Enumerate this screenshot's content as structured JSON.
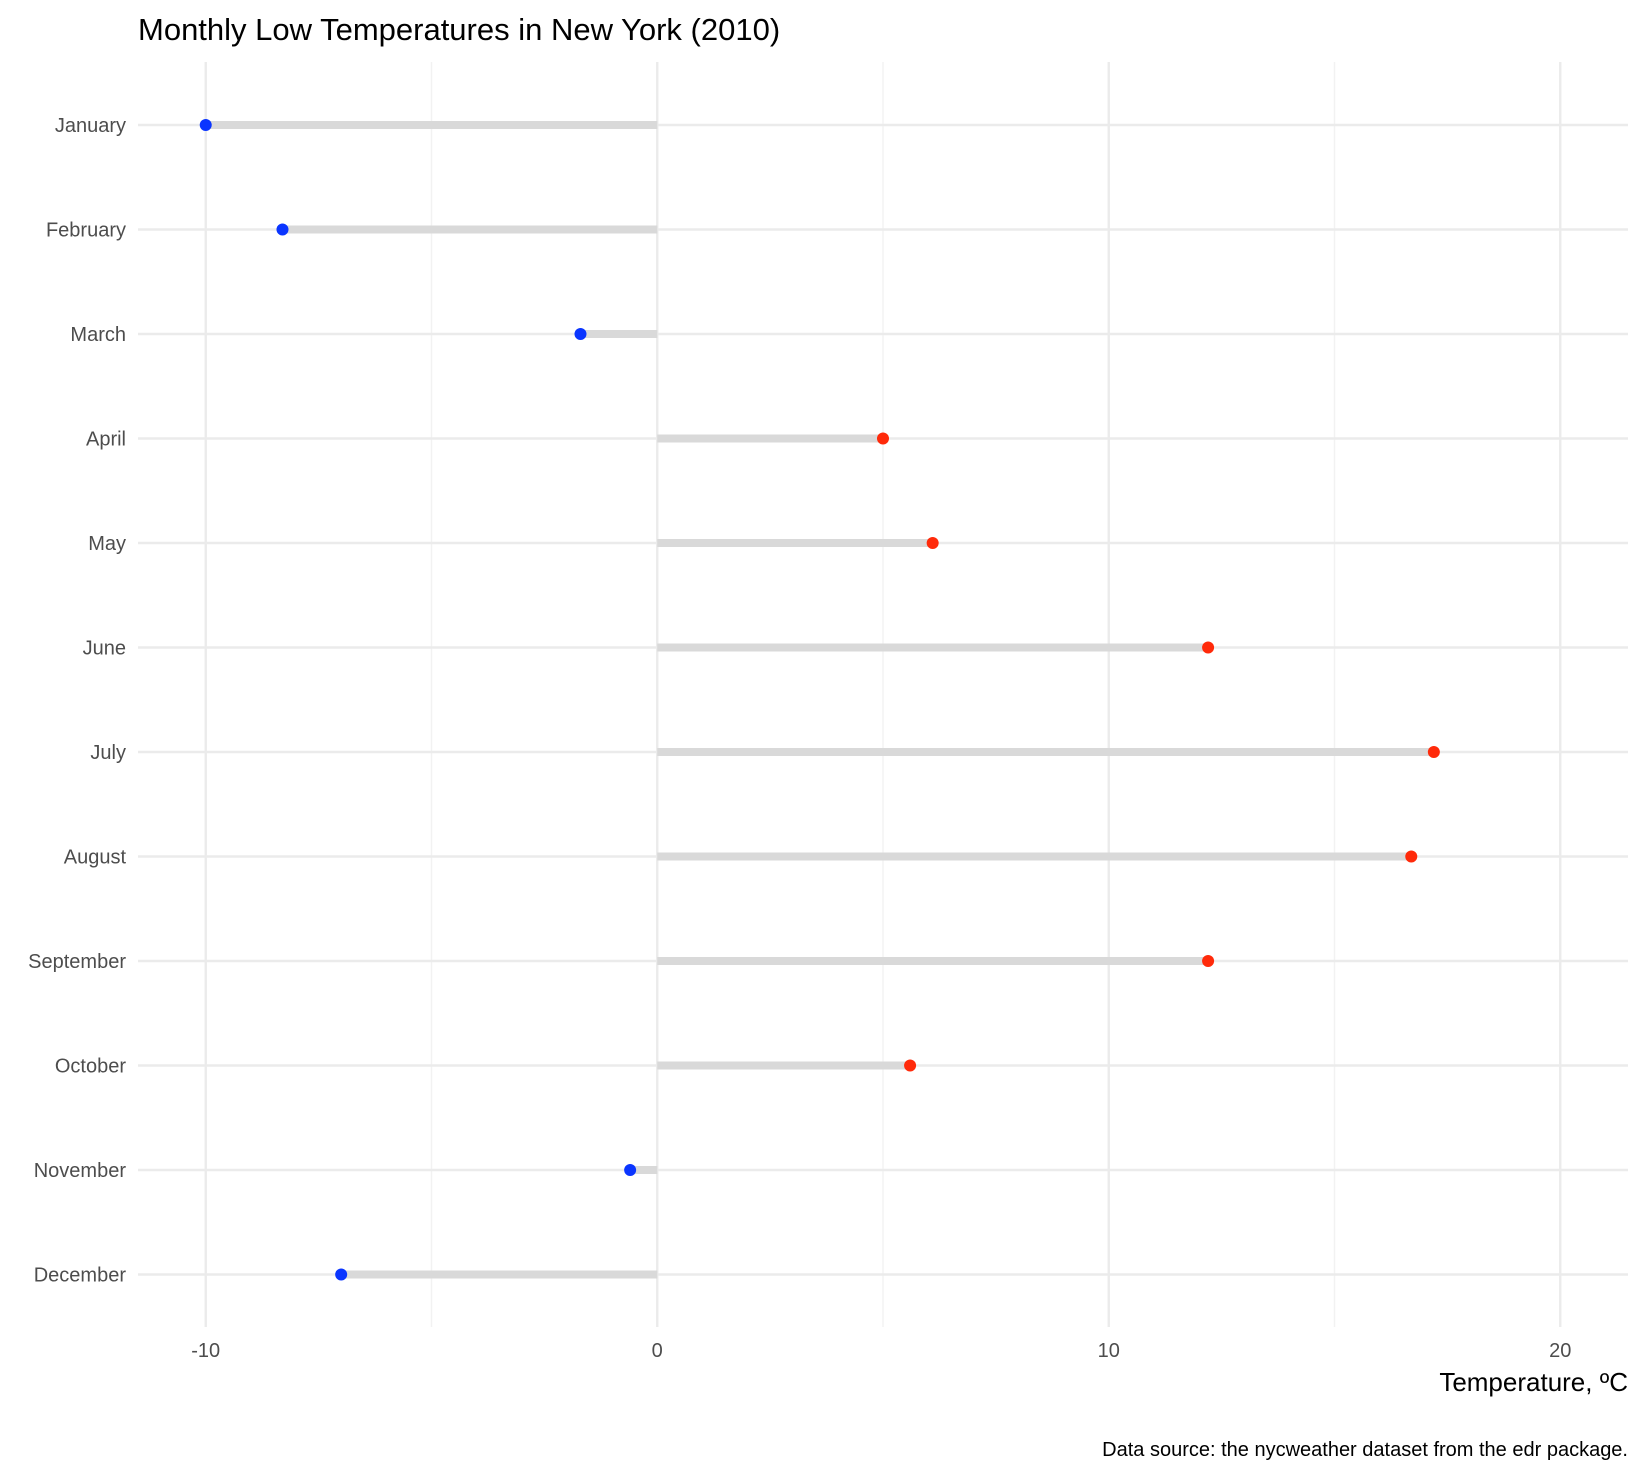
{
  "chart_data": {
    "type": "lollipop",
    "title": "Monthly Low Temperatures in New York (2010)",
    "xlabel": "Temperature, ºC",
    "ylabel": "",
    "caption": "Data source: the nycweather dataset from the edr package.",
    "xlim": [
      -11.5,
      21.5
    ],
    "x_ticks": [
      -10,
      0,
      10,
      20
    ],
    "x_tick_labels": [
      "-10",
      "0",
      "10",
      "20"
    ],
    "x_minor_ticks": [
      -5,
      5,
      15
    ],
    "baseline": 0,
    "grid": true,
    "legend": "none",
    "categories": [
      "January",
      "February",
      "March",
      "April",
      "May",
      "June",
      "July",
      "August",
      "September",
      "October",
      "November",
      "December"
    ],
    "values": [
      -10.0,
      -8.3,
      -1.7,
      5.0,
      6.1,
      12.2,
      17.2,
      16.7,
      12.2,
      5.6,
      -0.6,
      -7.0
    ],
    "colors": {
      "negative": "#0a35ff",
      "positive": "#ff2a0a",
      "stem": "#d9d9d9",
      "grid_major": "#ebebeb",
      "grid_minor": "#f2f2f2"
    }
  }
}
